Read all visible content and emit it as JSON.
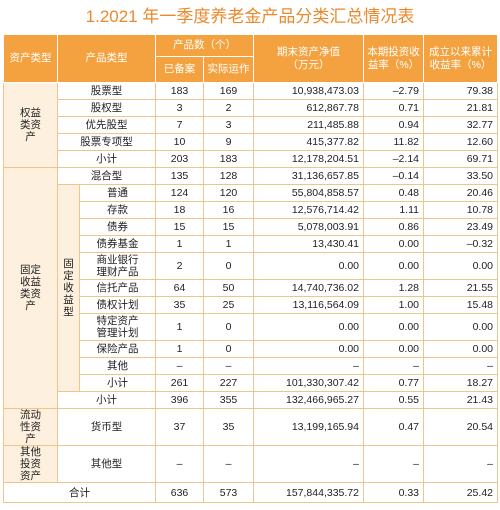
{
  "title": "1.2021 年一季度养老金产品分类汇总情况表",
  "header": {
    "asset_type": "资产类型",
    "product_type": "产品类型",
    "count": "产品数（个）",
    "filed": "已备案",
    "operating": "实际运作",
    "nav": "期末资产净值（万元）",
    "period_return": "本期投资收益率（%）",
    "cumulative_return": "成立以来累计收益率（%）"
  },
  "groups": [
    {
      "name": "权益类资产",
      "rows": [
        {
          "type": "股票型",
          "values": [
            "183",
            "169",
            "10,938,473.03",
            "–2.79",
            "79.38"
          ]
        },
        {
          "type": "股权型",
          "values": [
            "3",
            "2",
            "612,867.78",
            "0.71",
            "21.81"
          ]
        },
        {
          "type": "优先股型",
          "values": [
            "7",
            "3",
            "211,485.88",
            "0.94",
            "32.77"
          ]
        },
        {
          "type": "股票专项型",
          "values": [
            "10",
            "9",
            "415,377.82",
            "11.82",
            "12.60"
          ]
        },
        {
          "type": "小计",
          "values": [
            "203",
            "183",
            "12,178,204.51",
            "–2.14",
            "69.71"
          ]
        }
      ]
    },
    {
      "name": "固定收益类资产",
      "rows": [
        {
          "type": "混合型",
          "values": [
            "135",
            "128",
            "31,136,657.85",
            "–0.14",
            "33.50"
          ]
        },
        {
          "name": "固定收益型",
          "rows": [
            {
              "type": "普通",
              "values": [
                "124",
                "120",
                "55,804,858.57",
                "0.48",
                "20.46"
              ]
            },
            {
              "type": "存款",
              "values": [
                "18",
                "16",
                "12,576,714.42",
                "1.11",
                "10.78"
              ]
            },
            {
              "type": "债券",
              "values": [
                "15",
                "15",
                "5,078,003.91",
                "0.86",
                "23.49"
              ]
            },
            {
              "type": "债券基金",
              "values": [
                "1",
                "1",
                "13,430.41",
                "0.00",
                "–0.32"
              ]
            },
            {
              "type": "商业银行理财产品",
              "values": [
                "2",
                "0",
                "0.00",
                "0.00",
                "0.00"
              ]
            },
            {
              "type": "信托产品",
              "values": [
                "64",
                "50",
                "14,740,736.02",
                "1.28",
                "21.55"
              ]
            },
            {
              "type": "债权计划",
              "values": [
                "35",
                "25",
                "13,116,564.09",
                "1.00",
                "15.48"
              ]
            },
            {
              "type": "特定资产管理计划",
              "values": [
                "1",
                "0",
                "0.00",
                "0.00",
                "0.00"
              ]
            },
            {
              "type": "保险产品",
              "values": [
                "1",
                "0",
                "0.00",
                "0.00",
                "0.00"
              ]
            },
            {
              "type": "其他",
              "values": [
                "–",
                "–",
                "–",
                "–",
                "–"
              ]
            },
            {
              "type": "小计",
              "values": [
                "261",
                "227",
                "101,330,307.42",
                "0.77",
                "18.27"
              ]
            }
          ]
        },
        {
          "type": "小计",
          "values": [
            "396",
            "355",
            "132,466,965.27",
            "0.55",
            "21.43"
          ]
        }
      ]
    },
    {
      "name": "流动性资产",
      "rows": [
        {
          "type": "货币型",
          "values": [
            "37",
            "35",
            "13,199,165.94",
            "0.47",
            "20.54"
          ]
        }
      ]
    },
    {
      "name": "其他投资资产",
      "rows": [
        {
          "type": "其他型",
          "values": [
            "–",
            "–",
            "–",
            "–",
            "–"
          ]
        }
      ]
    }
  ],
  "total": {
    "label": "合计",
    "values": [
      "636",
      "573",
      "157,844,335.72",
      "0.33",
      "25.42"
    ]
  }
}
